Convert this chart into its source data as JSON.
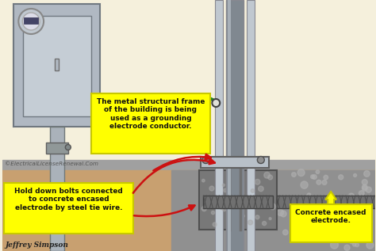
{
  "bg_wall_color": "#f5f0dc",
  "panel_body_color": "#b0b8c2",
  "panel_door_color": "#c5cdd5",
  "panel_edge_color": "#707880",
  "conduit_color": "#aab2ba",
  "conduit_edge": "#707878",
  "col_center_color": "#808890",
  "col_side_color": "#c0c8d0",
  "col_edge_color": "#888890",
  "ground_strip_color": "#a0a0a0",
  "earth_color": "#c8a070",
  "concrete_color": "#909090",
  "base_plate_color": "#b8c0c8",
  "green_wire_color": "#228822",
  "red_arrow_color": "#cc1111",
  "label_bg": "#ffff00",
  "label_border": "#c8c800",
  "text_dark": "#111111",
  "copyright_color": "#555555",
  "author_color": "#222222",
  "ann1": "The metal structural frame\nof the building is being\nused as a grounding\nelectrode conductor.",
  "ann2": "Hold down bolts connected\nto concrete encased\nelectrode by steel tie wire.",
  "ann3": "Concrete encased\nelectrode.",
  "copyright": "©ElectricalLicenseRenewal.Com",
  "author": "Jeffrey Simpson"
}
